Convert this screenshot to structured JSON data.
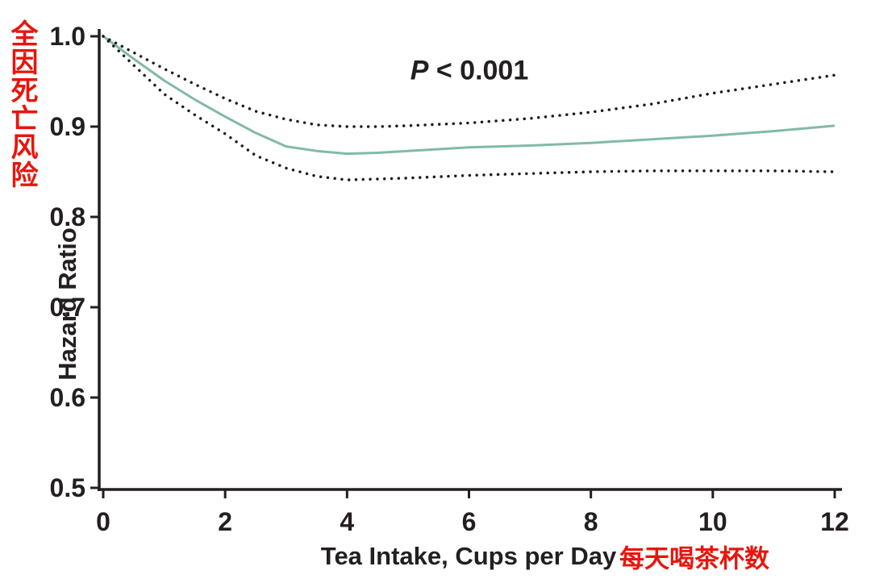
{
  "figure": {
    "annotation": {
      "p_symbol": "P",
      "p_rest": " < 0.001"
    },
    "y_axis_title_zh": "全因死亡风险",
    "y_axis_title_en": "Hazard Ratio",
    "x_axis_title_en": "Tea Intake, Cups per Day",
    "x_axis_title_zh": "每天喝茶杯数",
    "colors": {
      "ink": "#231f20",
      "accent_red": "#e8150c",
      "line_teal": "#82b9a8",
      "ci_dots": "#1c1c1c"
    }
  },
  "chart_data": {
    "type": "line",
    "title": "",
    "annotation": "P < 0.001",
    "xlabel": "Tea Intake, Cups per Day (每天喝茶杯数)",
    "ylabel": "Hazard Ratio (全因死亡风险)",
    "xlim": [
      0,
      12
    ],
    "ylim": [
      0.5,
      1.0
    ],
    "grid": false,
    "legend": "none",
    "xticks": [
      {
        "value": 0,
        "label": "0"
      },
      {
        "value": 2,
        "label": "2"
      },
      {
        "value": 4,
        "label": "4"
      },
      {
        "value": 6,
        "label": "6"
      },
      {
        "value": 8,
        "label": "8"
      },
      {
        "value": 10,
        "label": "10"
      },
      {
        "value": 12,
        "label": "12"
      }
    ],
    "yticks": [
      {
        "value": 0.5,
        "label": "0.5"
      },
      {
        "value": 0.6,
        "label": "0.6"
      },
      {
        "value": 0.7,
        "label": "0.7"
      },
      {
        "value": 0.8,
        "label": "0.8"
      },
      {
        "value": 0.9,
        "label": "0.9"
      },
      {
        "value": 1.0,
        "label": "1.0"
      }
    ],
    "series": [
      {
        "name": "hazard-ratio",
        "style": "solid",
        "color": "#82b9a8",
        "width": 3,
        "x": [
          0,
          0.5,
          1,
          1.5,
          2,
          2.5,
          3,
          3.5,
          4,
          4.5,
          5,
          6,
          7,
          8,
          9,
          10,
          11,
          12
        ],
        "y": [
          1.0,
          0.975,
          0.951,
          0.93,
          0.911,
          0.893,
          0.878,
          0.873,
          0.87,
          0.871,
          0.873,
          0.877,
          0.879,
          0.882,
          0.886,
          0.89,
          0.895,
          0.901
        ]
      },
      {
        "name": "ci-upper",
        "style": "dotted",
        "color": "#1c1c1c",
        "width": 3.5,
        "x": [
          0,
          0.5,
          1,
          1.5,
          2,
          2.5,
          3,
          3.5,
          4,
          4.5,
          5,
          6,
          7,
          8,
          9,
          10,
          11,
          12
        ],
        "y": [
          1.0,
          0.982,
          0.964,
          0.947,
          0.931,
          0.917,
          0.908,
          0.902,
          0.9,
          0.9,
          0.901,
          0.904,
          0.909,
          0.916,
          0.925,
          0.937,
          0.947,
          0.957
        ]
      },
      {
        "name": "ci-lower",
        "style": "dotted",
        "color": "#1c1c1c",
        "width": 3.5,
        "x": [
          0,
          0.5,
          1,
          1.5,
          2,
          2.5,
          3,
          3.5,
          4,
          4.5,
          5,
          6,
          7,
          8,
          9,
          10,
          11,
          12
        ],
        "y": [
          1.0,
          0.968,
          0.936,
          0.913,
          0.892,
          0.868,
          0.854,
          0.845,
          0.841,
          0.842,
          0.843,
          0.846,
          0.848,
          0.85,
          0.851,
          0.851,
          0.851,
          0.85
        ]
      }
    ]
  }
}
